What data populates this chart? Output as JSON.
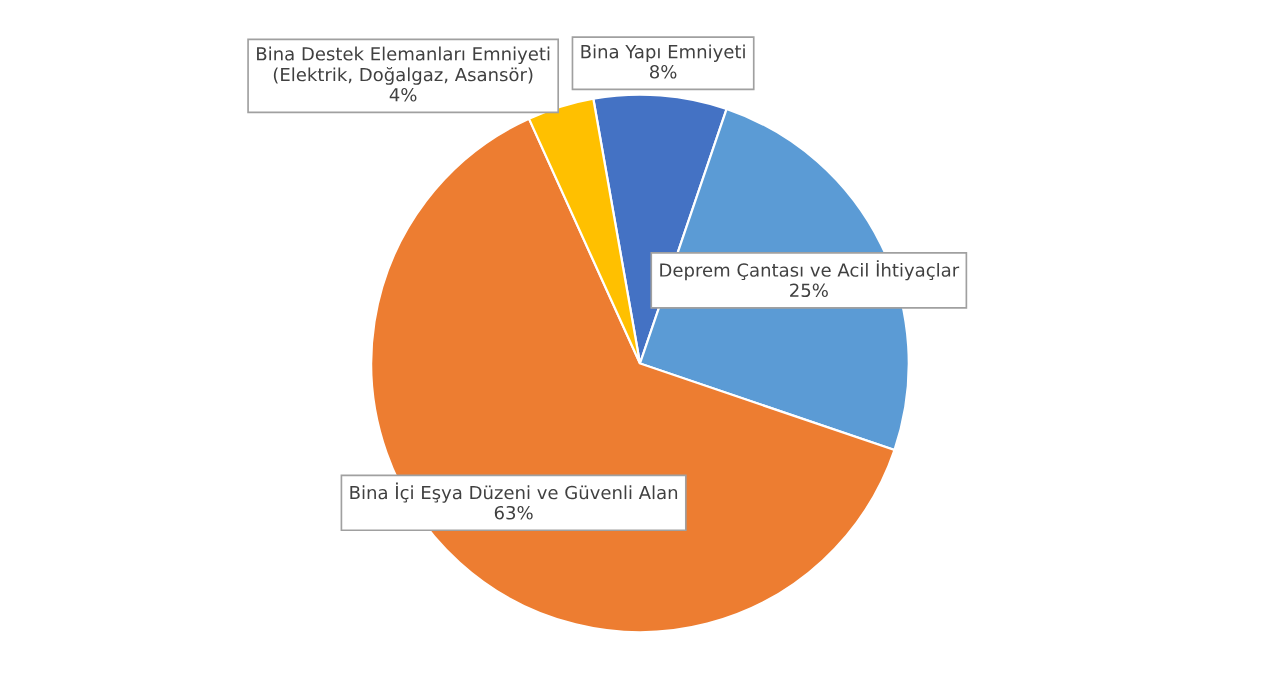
{
  "chart_data": {
    "type": "pie",
    "categories": [
      "Bina Yapı Emniyeti",
      "Deprem Çantası ve Acil İhtiyaçlar",
      "Bina İçi Eşya Düzeni ve Güvenli Alan",
      "Bina Destek Elemanları Emniyeti\n(Elektrik, Doğalgaz, Asansör)"
    ],
    "value_labels": [
      "8%",
      "25%",
      "63%",
      "4%"
    ],
    "values": [
      8,
      25,
      63,
      4
    ],
    "colors": [
      "#4472c4",
      "#5b9bd5",
      "#ed7d31",
      "#ffc000"
    ],
    "legend": false
  }
}
